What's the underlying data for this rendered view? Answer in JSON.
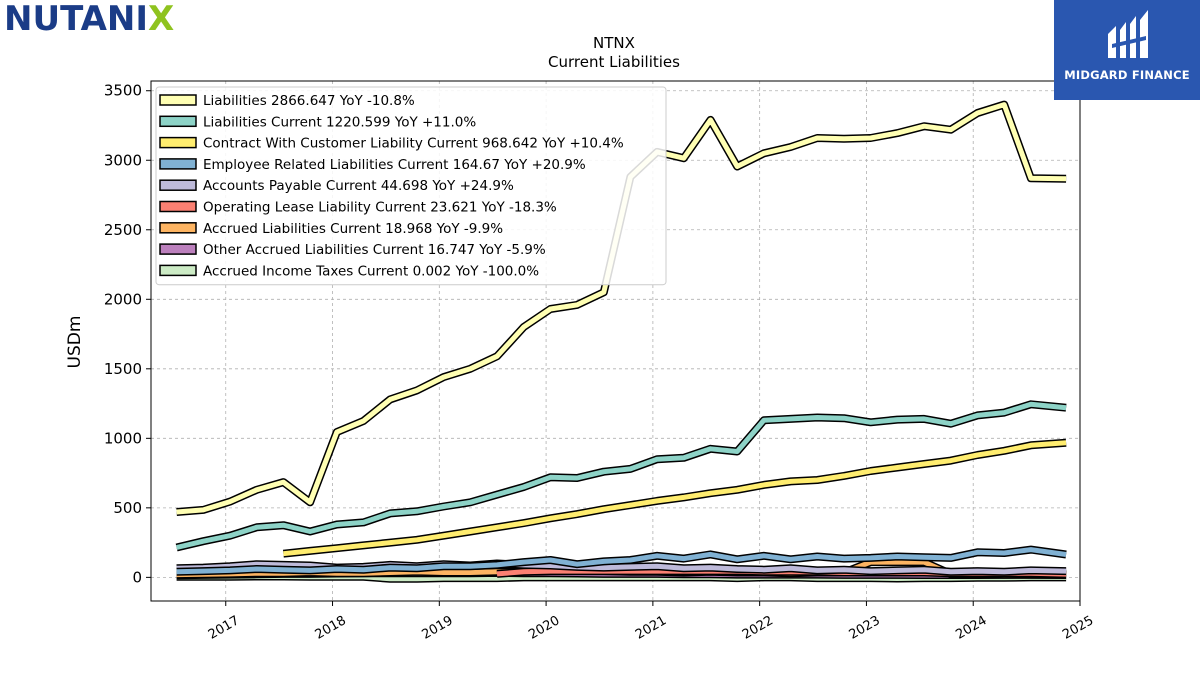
{
  "brand": {
    "logo_text": "NUTANIX",
    "badge_text": "MIDGARD FINANCE",
    "colors": {
      "logo_blue": "#1b3c87",
      "logo_green": "#8fc31f",
      "badge_bg": "#2a57b0"
    }
  },
  "chart_data": {
    "type": "line",
    "title": "NTNX",
    "subtitle": "Current  Liabilities",
    "ylabel": "USDm",
    "xlabel": "",
    "ylim": [
      -170,
      3570
    ],
    "xlim": [
      2016.3,
      2025.0
    ],
    "yticks": [
      0,
      500,
      1000,
      1500,
      2000,
      2500,
      3000,
      3500
    ],
    "xticks": [
      2017,
      2018,
      2019,
      2020,
      2021,
      2022,
      2023,
      2024,
      2025
    ],
    "xtick_labels": [
      "2017",
      "2018",
      "2019",
      "2020",
      "2021",
      "2022",
      "2023",
      "2024",
      "2025"
    ],
    "grid": true,
    "legend_position": "top-left",
    "series": [
      {
        "name": "Liabilities",
        "legend": "Liabilities  2866.647 YoY -10.8%",
        "color": "#ffffb3",
        "x": [
          2016.54,
          2016.79,
          2017.04,
          2017.29,
          2017.54,
          2017.79,
          2018.04,
          2018.29,
          2018.54,
          2018.79,
          2019.04,
          2019.29,
          2019.54,
          2019.79,
          2020.04,
          2020.29,
          2020.54,
          2020.79,
          2021.04,
          2021.29,
          2021.54,
          2021.79,
          2022.04,
          2022.29,
          2022.54,
          2022.79,
          2023.04,
          2023.29,
          2023.54,
          2023.79,
          2024.04,
          2024.29,
          2024.54,
          2024.87
        ],
        "y": [
          470,
          485,
          545,
          630,
          685,
          540,
          1045,
          1125,
          1280,
          1345,
          1440,
          1500,
          1590,
          1800,
          1930,
          1960,
          2050,
          2880,
          3060,
          3015,
          3290,
          2955,
          3050,
          3095,
          3160,
          3155,
          3160,
          3195,
          3245,
          3220,
          3340,
          3400,
          2870,
          2866.647
        ]
      },
      {
        "name": "Liabilities Current",
        "legend": "Liabilities Current  1220.599 YoY +11.0%",
        "color": "#8dd3c7",
        "x": [
          2016.54,
          2016.79,
          2017.04,
          2017.29,
          2017.54,
          2017.79,
          2018.04,
          2018.29,
          2018.54,
          2018.79,
          2019.04,
          2019.29,
          2019.54,
          2019.79,
          2020.04,
          2020.29,
          2020.54,
          2020.79,
          2021.04,
          2021.29,
          2021.54,
          2021.79,
          2022.04,
          2022.29,
          2022.54,
          2022.79,
          2023.04,
          2023.29,
          2023.54,
          2023.79,
          2024.04,
          2024.29,
          2024.54,
          2024.87
        ],
        "y": [
          215,
          260,
          300,
          360,
          375,
          330,
          380,
          395,
          460,
          475,
          510,
          540,
          595,
          650,
          720,
          715,
          760,
          780,
          850,
          860,
          925,
          905,
          1130,
          1140,
          1150,
          1145,
          1115,
          1135,
          1140,
          1105,
          1165,
          1185,
          1245,
          1220.599
        ]
      },
      {
        "name": "Contract With Customer Liability Current",
        "legend": "Contract With Customer Liability Current  968.642 YoY +10.4%",
        "color": "#ffed6f",
        "x": [
          2017.54,
          2017.79,
          2018.04,
          2018.29,
          2018.54,
          2018.79,
          2019.04,
          2019.29,
          2019.54,
          2019.79,
          2020.04,
          2020.29,
          2020.54,
          2020.79,
          2021.04,
          2021.29,
          2021.54,
          2021.79,
          2022.04,
          2022.29,
          2022.54,
          2022.79,
          2023.04,
          2023.29,
          2023.54,
          2023.79,
          2024.04,
          2024.29,
          2024.54,
          2024.87
        ],
        "y": [
          170,
          190,
          210,
          230,
          250,
          270,
          300,
          330,
          360,
          390,
          425,
          455,
          490,
          520,
          550,
          575,
          605,
          630,
          665,
          690,
          700,
          730,
          765,
          790,
          815,
          840,
          880,
          910,
          950,
          968.642
        ]
      },
      {
        "name": "Employee Related Liabilities Current",
        "legend": "Employee Related Liabilities Current  164.67 YoY +20.9%",
        "color": "#80b1d3",
        "x": [
          2016.54,
          2016.79,
          2017.04,
          2017.29,
          2017.54,
          2017.79,
          2018.04,
          2018.29,
          2018.54,
          2018.79,
          2019.04,
          2019.29,
          2019.54,
          2019.79,
          2020.04,
          2020.29,
          2020.54,
          2020.79,
          2021.04,
          2021.29,
          2021.54,
          2021.79,
          2022.04,
          2022.29,
          2022.54,
          2022.79,
          2023.04,
          2023.29,
          2023.54,
          2023.79,
          2024.04,
          2024.29,
          2024.54,
          2024.87
        ],
        "y": [
          40,
          45,
          50,
          60,
          55,
          50,
          60,
          55,
          70,
          65,
          80,
          80,
          90,
          110,
          125,
          95,
          115,
          125,
          155,
          135,
          165,
          130,
          155,
          130,
          150,
          135,
          140,
          150,
          145,
          140,
          180,
          175,
          200,
          164.67
        ]
      },
      {
        "name": "Accounts Payable Current",
        "legend": "Accounts Payable Current  44.698 YoY +24.9%",
        "color": "#bebada",
        "x": [
          2016.54,
          2016.79,
          2017.04,
          2017.29,
          2017.54,
          2017.79,
          2018.04,
          2018.29,
          2018.54,
          2018.79,
          2019.04,
          2019.29,
          2019.54,
          2019.79,
          2020.04,
          2020.29,
          2020.54,
          2020.79,
          2021.04,
          2021.29,
          2021.54,
          2021.79,
          2022.04,
          2022.29,
          2022.54,
          2022.79,
          2023.04,
          2023.29,
          2023.54,
          2023.79,
          2024.04,
          2024.29,
          2024.54,
          2024.87
        ],
        "y": [
          65,
          70,
          80,
          95,
          90,
          85,
          70,
          75,
          90,
          80,
          95,
          85,
          100,
          90,
          85,
          75,
          70,
          75,
          80,
          65,
          70,
          60,
          55,
          65,
          50,
          55,
          45,
          50,
          55,
          40,
          45,
          40,
          50,
          44.698
        ]
      },
      {
        "name": "Operating Lease Liability Current",
        "legend": "Operating Lease Liability Current  23.621 YoY -18.3%",
        "color": "#fb8072",
        "x": [
          2019.54,
          2019.79,
          2020.04,
          2020.29,
          2020.54,
          2020.79,
          2021.04,
          2021.29,
          2021.54,
          2021.79,
          2022.04,
          2022.29,
          2022.54,
          2022.79,
          2023.04,
          2023.29,
          2023.54,
          2023.79,
          2024.04,
          2024.29,
          2024.54,
          2024.87
        ],
        "y": [
          25,
          40,
          45,
          45,
          45,
          45,
          45,
          45,
          45,
          45,
          40,
          40,
          40,
          35,
          35,
          35,
          35,
          30,
          30,
          30,
          29,
          23.621
        ]
      },
      {
        "name": "Accrued Liabilities Current",
        "legend": "Accrued Liabilities Current  18.968 YoY -9.9%",
        "color": "#fdb462",
        "x": [
          2016.54,
          2016.79,
          2017.04,
          2017.29,
          2017.54,
          2017.79,
          2018.04,
          2018.29,
          2018.54,
          2018.79,
          2019.04,
          2019.29,
          2019.54,
          2019.79,
          2020.04,
          2020.29,
          2020.54,
          2020.79,
          2021.04,
          2021.29,
          2021.54,
          2021.79,
          2022.04,
          2022.29,
          2022.54,
          2022.79,
          2023.04,
          2023.29,
          2023.54,
          2023.79,
          2024.04,
          2024.29,
          2024.54,
          2024.87
        ],
        "y": [
          20,
          22,
          25,
          30,
          30,
          35,
          30,
          30,
          35,
          40,
          35,
          35,
          40,
          40,
          45,
          45,
          45,
          40,
          40,
          35,
          40,
          35,
          35,
          30,
          35,
          35,
          110,
          110,
          110,
          25,
          25,
          20,
          21,
          18.968
        ]
      },
      {
        "name": "Other Accrued Liabilities Current",
        "legend": "Other Accrued Liabilities Current  16.747 YoY -5.9%",
        "color": "#bc80bd",
        "x": [
          2016.54,
          2016.79,
          2017.04,
          2017.29,
          2017.54,
          2017.79,
          2018.04,
          2018.29,
          2018.54,
          2018.79,
          2019.04,
          2019.29,
          2019.54,
          2019.79,
          2020.04,
          2020.29,
          2020.54,
          2020.79,
          2021.04,
          2021.29,
          2021.54,
          2021.79,
          2022.04,
          2022.29,
          2022.54,
          2022.79,
          2023.04,
          2023.29,
          2023.54,
          2023.79,
          2024.04,
          2024.29,
          2024.54,
          2024.87
        ],
        "y": [
          15,
          18,
          20,
          22,
          25,
          25,
          28,
          30,
          30,
          30,
          30,
          30,
          32,
          30,
          30,
          28,
          25,
          25,
          25,
          22,
          22,
          20,
          20,
          20,
          20,
          18,
          18,
          18,
          17,
          17,
          17,
          18,
          18,
          16.747
        ]
      },
      {
        "name": "Accrued Income Taxes Current",
        "legend": "Accrued Income Taxes Current  0.002 YoY -100.0%",
        "color": "#ccebc5",
        "x": [
          2016.54,
          2016.79,
          2017.04,
          2017.29,
          2017.54,
          2017.79,
          2018.04,
          2018.29,
          2018.54,
          2018.79,
          2019.04,
          2019.29,
          2019.54,
          2019.79,
          2020.04,
          2020.29,
          2020.54,
          2020.79,
          2021.04,
          2021.29,
          2021.54,
          2021.79,
          2022.04,
          2022.29,
          2022.54,
          2022.79,
          2023.04,
          2023.29,
          2023.54,
          2023.79,
          2024.04,
          2024.29,
          2024.54,
          2024.87
        ],
        "y": [
          5,
          5,
          5,
          6,
          6,
          5,
          5,
          5,
          -10,
          -10,
          -5,
          -5,
          -5,
          0,
          0,
          0,
          0,
          0,
          0,
          0,
          0,
          -5,
          0,
          0,
          -5,
          -5,
          -5,
          -8,
          -5,
          -5,
          -3,
          -3,
          0,
          0.002
        ]
      }
    ]
  }
}
